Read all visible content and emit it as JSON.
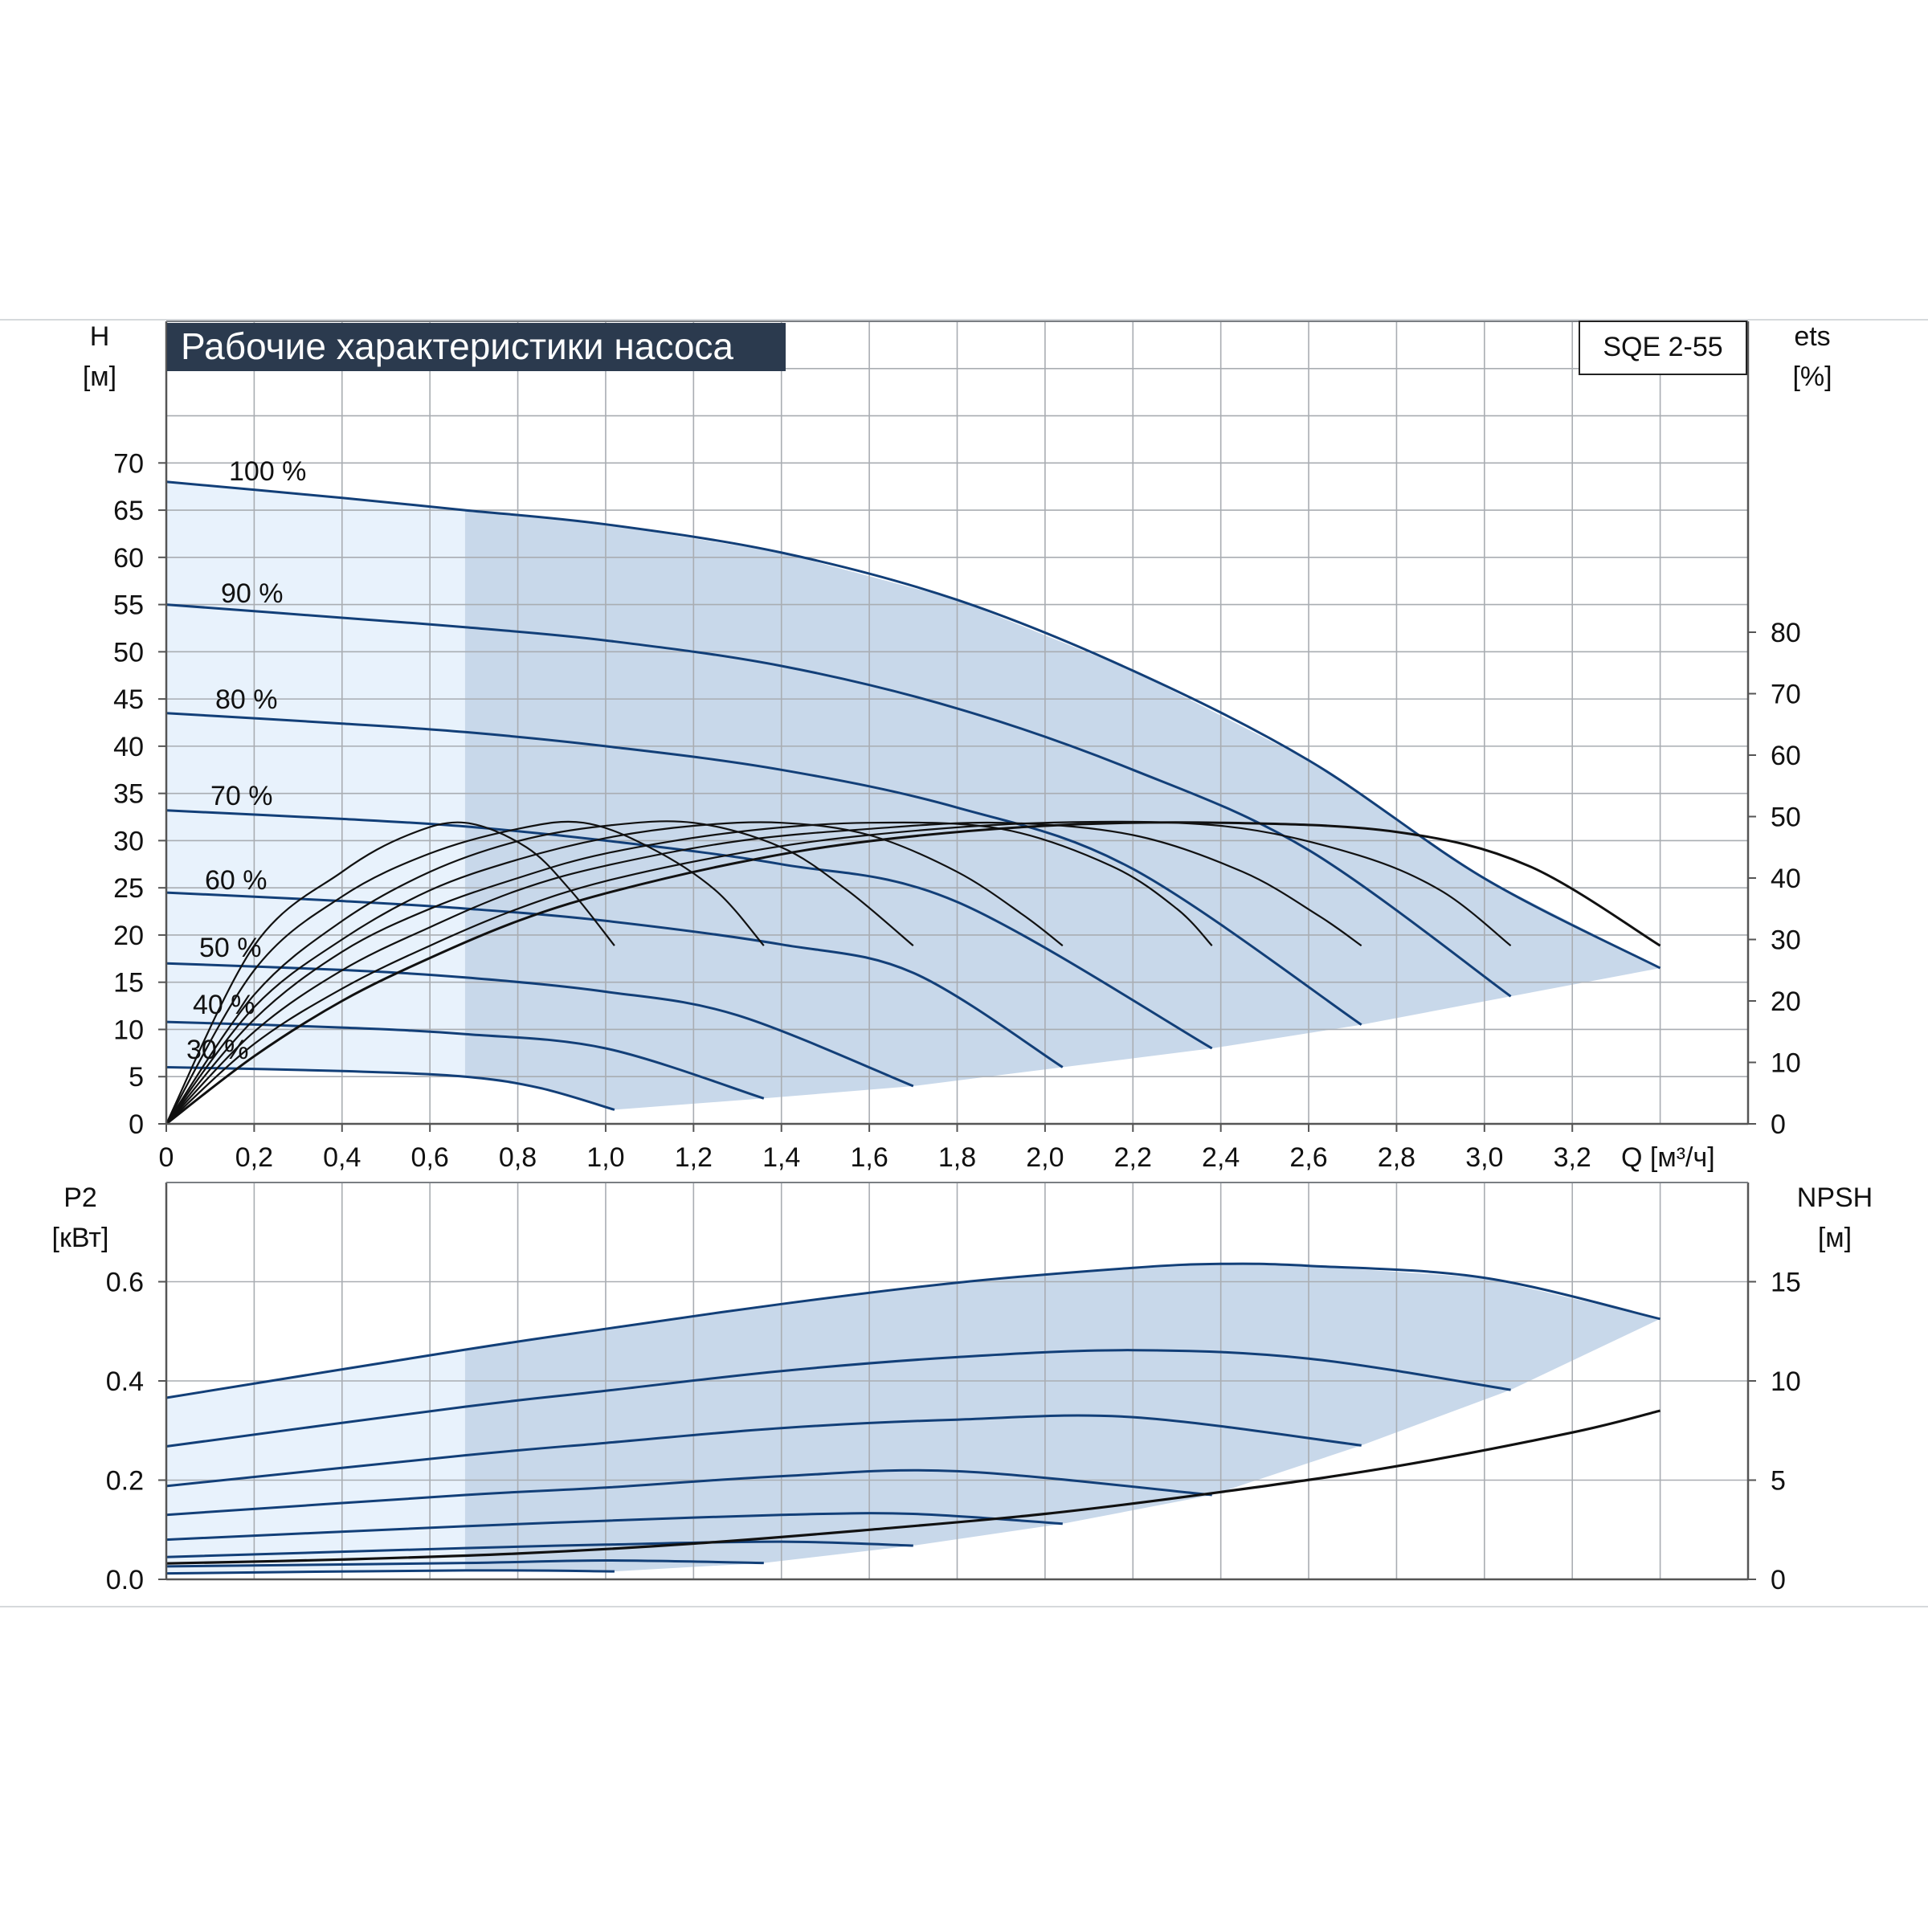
{
  "header": {
    "title": "Рабочие характеристики насоса",
    "model": "SQE 2-55"
  },
  "colors": {
    "title_bg": "#2b3a4e",
    "curve_blue": "#123f78",
    "eff_black": "#111111",
    "area_fill": "#c8d8ea",
    "area_fill_light": "#e8f2fc",
    "grid": "#a9adb2"
  },
  "chart_data": [
    {
      "type": "line",
      "name": "performance",
      "title": "Рабочие характеристики насоса",
      "xlabel": "Q [м³/ч]",
      "ylabel": "H",
      "ylabel_unit": "[м]",
      "y2label": "ets",
      "y2label_unit": "[%]",
      "xlim": [
        0,
        3.6
      ],
      "ylim": [
        0,
        70
      ],
      "y2lim": [
        0,
        80
      ],
      "x_ticks": [
        "0",
        "0,2",
        "0,4",
        "0,6",
        "0,8",
        "1,0",
        "1,2",
        "1,4",
        "1,6",
        "1,8",
        "2,0",
        "2,2",
        "2,4",
        "2,6",
        "2,8",
        "3,0",
        "3,2"
      ],
      "x_tick_values": [
        0,
        0.2,
        0.4,
        0.6,
        0.8,
        1.0,
        1.2,
        1.4,
        1.6,
        1.8,
        2.0,
        2.2,
        2.4,
        2.6,
        2.8,
        3.0,
        3.2
      ],
      "y_ticks": [
        0,
        5,
        10,
        15,
        20,
        25,
        30,
        35,
        40,
        45,
        50,
        55,
        60,
        65,
        70
      ],
      "y2_ticks": [
        0,
        10,
        20,
        30,
        40,
        50,
        60,
        70,
        80
      ],
      "grid": true,
      "min_flow": 0.68,
      "speed_labels": [
        "100 %",
        "90 %",
        "80 %",
        "70 %",
        "60 %",
        "50 %",
        "40 %",
        "30 %"
      ],
      "head_series": [
        {
          "name": "100 %",
          "x": [
            0,
            0.4,
            0.68,
            1.0,
            1.4,
            1.8,
            2.2,
            2.6,
            3.0,
            3.4
          ],
          "y": [
            68,
            66.3,
            65,
            63.5,
            60.5,
            55.5,
            48,
            38.5,
            26,
            16.5
          ]
        },
        {
          "name": "90 %",
          "x": [
            0,
            0.4,
            0.68,
            1.0,
            1.4,
            1.8,
            2.2,
            2.6,
            3.06
          ],
          "y": [
            55,
            53.6,
            52.6,
            51.2,
            48.5,
            44,
            37.5,
            29,
            13.5
          ]
        },
        {
          "name": "80 %",
          "x": [
            0,
            0.4,
            0.68,
            1.0,
            1.4,
            1.8,
            2.2,
            2.72
          ],
          "y": [
            43.5,
            42.4,
            41.5,
            40,
            37.5,
            33.5,
            27,
            10.5
          ]
        },
        {
          "name": "70 %",
          "x": [
            0,
            0.4,
            0.68,
            1.0,
            1.4,
            1.8,
            2.38
          ],
          "y": [
            33.2,
            32.3,
            31.5,
            30,
            27.5,
            23.5,
            8
          ]
        },
        {
          "name": "60 %",
          "x": [
            0,
            0.4,
            0.68,
            1.0,
            1.4,
            1.7,
            2.04
          ],
          "y": [
            24.5,
            23.6,
            22.8,
            21.5,
            19,
            16,
            6
          ]
        },
        {
          "name": "50 %",
          "x": [
            0,
            0.4,
            0.68,
            1.0,
            1.3,
            1.7
          ],
          "y": [
            17,
            16.3,
            15.5,
            14,
            11.5,
            4
          ]
        },
        {
          "name": "40 %",
          "x": [
            0,
            0.4,
            0.68,
            1.0,
            1.36
          ],
          "y": [
            10.8,
            10.2,
            9.5,
            8,
            2.7
          ]
        },
        {
          "name": "30 %",
          "x": [
            0,
            0.4,
            0.68,
            0.85,
            1.02
          ],
          "y": [
            6,
            5.6,
            5,
            3.8,
            1.5
          ]
        }
      ],
      "eff_series": [
        {
          "name": "",
          "x": [
            0,
            0.2,
            0.4,
            0.55,
            0.68,
            0.82,
            0.92,
            1.02
          ],
          "y2": [
            0,
            29,
            41,
            47,
            49,
            45,
            38,
            29
          ]
        },
        {
          "name": "",
          "x": [
            0,
            0.2,
            0.4,
            0.6,
            0.8,
            0.95,
            1.1,
            1.25,
            1.36
          ],
          "y2": [
            0,
            25,
            37,
            44,
            48,
            49,
            45,
            38,
            29
          ]
        },
        {
          "name": "",
          "x": [
            0,
            0.2,
            0.4,
            0.6,
            0.8,
            1.0,
            1.2,
            1.4,
            1.55,
            1.7
          ],
          "y2": [
            0,
            21,
            33,
            41,
            46,
            48.5,
            49,
            45,
            38,
            29
          ]
        },
        {
          "name": "",
          "x": [
            0,
            0.2,
            0.4,
            0.6,
            0.8,
            1.0,
            1.2,
            1.4,
            1.6,
            1.8,
            1.95,
            2.04
          ],
          "y2": [
            0,
            19,
            30,
            38,
            43,
            46.5,
            48.5,
            49,
            47,
            41,
            34,
            29
          ]
        },
        {
          "name": "",
          "x": [
            0,
            0.2,
            0.4,
            0.6,
            0.8,
            1.0,
            1.3,
            1.6,
            1.9,
            2.15,
            2.3,
            2.38
          ],
          "y2": [
            0,
            17,
            28,
            35,
            40,
            44,
            47.5,
            49,
            48,
            42,
            35,
            29
          ]
        },
        {
          "name": "",
          "x": [
            0,
            0.2,
            0.4,
            0.6,
            0.8,
            1.0,
            1.3,
            1.6,
            1.9,
            2.2,
            2.45,
            2.62,
            2.72
          ],
          "y2": [
            0,
            15,
            25,
            32,
            38,
            42,
            46,
            48,
            49,
            47,
            41,
            34,
            29
          ]
        },
        {
          "name": "",
          "x": [
            0,
            0.2,
            0.4,
            0.6,
            0.8,
            1.0,
            1.3,
            1.6,
            2.0,
            2.4,
            2.7,
            2.9,
            3.06
          ],
          "y2": [
            0,
            13,
            22,
            29,
            35,
            39.5,
            44,
            47,
            49,
            48.5,
            44,
            38,
            29
          ]
        },
        {
          "name": "",
          "x": [
            0,
            0.2,
            0.4,
            0.6,
            0.8,
            1.0,
            1.3,
            1.6,
            2.0,
            2.4,
            2.8,
            3.1,
            3.4
          ],
          "y2": [
            0,
            11,
            20,
            27,
            33,
            37.5,
            42.5,
            46,
            48.5,
            49,
            47.5,
            42,
            29
          ]
        }
      ]
    },
    {
      "type": "line",
      "name": "power",
      "ylabel": "P2",
      "ylabel_unit": "[кВт]",
      "y2label": "NPSH",
      "y2label_unit": "[м]",
      "xlim": [
        0,
        3.6
      ],
      "ylim": [
        0,
        0.8
      ],
      "y2lim": [
        0,
        20
      ],
      "y_ticks": [
        "0.0",
        "0.2",
        "0.4",
        "0.6"
      ],
      "y_tick_values": [
        0,
        0.2,
        0.4,
        0.6
      ],
      "y2_ticks": [
        0,
        5,
        10,
        15
      ],
      "grid": true,
      "power_series": [
        {
          "name": "100 %",
          "x": [
            0,
            0.68,
            1.0,
            1.4,
            1.8,
            2.2,
            2.4,
            2.6,
            3.0,
            3.4
          ],
          "y": [
            0.366,
            0.463,
            0.505,
            0.555,
            0.598,
            0.628,
            0.636,
            0.632,
            0.608,
            0.525
          ]
        },
        {
          "name": "90 %",
          "x": [
            0,
            0.68,
            1.0,
            1.4,
            1.8,
            2.2,
            2.6,
            3.06
          ],
          "y": [
            0.268,
            0.348,
            0.38,
            0.42,
            0.448,
            0.462,
            0.445,
            0.382
          ]
        },
        {
          "name": "80 %",
          "x": [
            0,
            0.68,
            1.0,
            1.4,
            1.8,
            2.2,
            2.72
          ],
          "y": [
            0.188,
            0.25,
            0.275,
            0.305,
            0.322,
            0.327,
            0.27
          ]
        },
        {
          "name": "70 %",
          "x": [
            0,
            0.68,
            1.0,
            1.4,
            1.8,
            2.38
          ],
          "y": [
            0.13,
            0.17,
            0.185,
            0.208,
            0.218,
            0.17
          ]
        },
        {
          "name": "60 %",
          "x": [
            0,
            0.68,
            1.0,
            1.4,
            1.7,
            2.04
          ],
          "y": [
            0.08,
            0.107,
            0.118,
            0.13,
            0.132,
            0.112
          ]
        },
        {
          "name": "50 %",
          "x": [
            0,
            0.68,
            1.0,
            1.4,
            1.7
          ],
          "y": [
            0.045,
            0.063,
            0.07,
            0.076,
            0.068
          ]
        },
        {
          "name": "40 %",
          "x": [
            0,
            0.68,
            1.0,
            1.36
          ],
          "y": [
            0.026,
            0.033,
            0.038,
            0.033
          ]
        },
        {
          "name": "30 %",
          "x": [
            0,
            0.68,
            1.02
          ],
          "y": [
            0.012,
            0.018,
            0.016
          ]
        }
      ],
      "npsh_series": [
        {
          "name": "",
          "x": [
            0,
            0.4,
            0.8,
            1.2,
            1.6,
            2.0,
            2.4,
            2.8,
            3.2,
            3.4
          ],
          "y2": [
            0.8,
            1.0,
            1.3,
            1.8,
            2.5,
            3.3,
            4.4,
            5.7,
            7.4,
            8.5
          ]
        }
      ]
    }
  ]
}
